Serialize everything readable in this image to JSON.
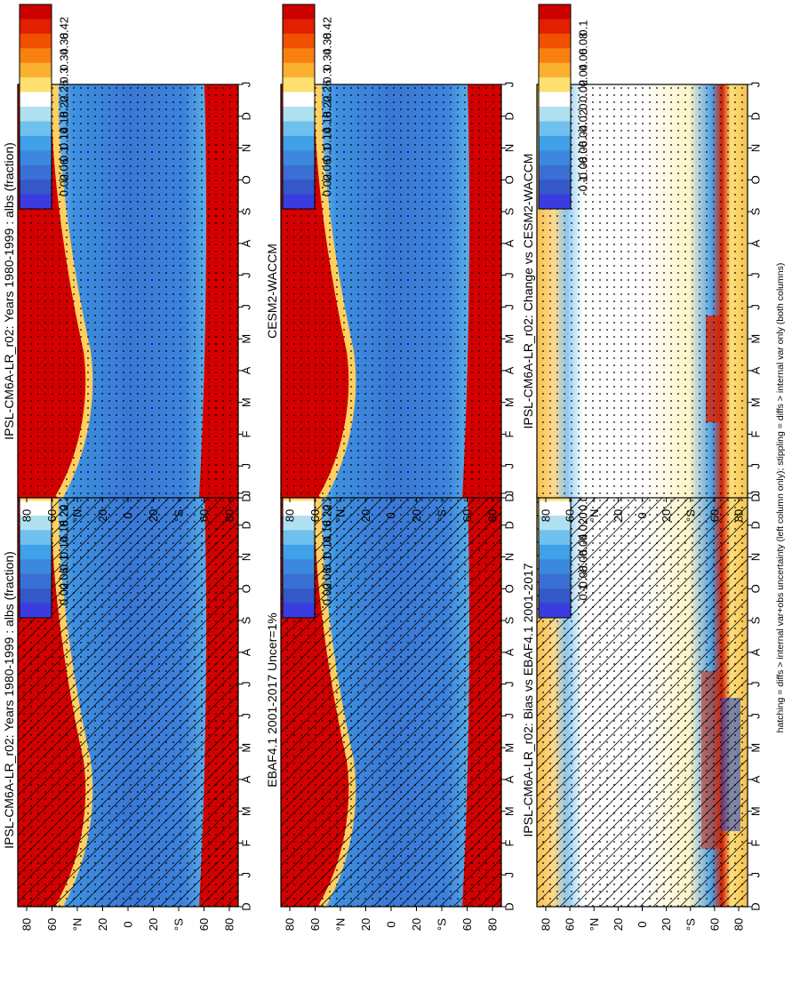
{
  "figure": {
    "caption": "hatching = diffs > internal var+obs uncertainty (left column only); stippling = diffs > internal var only (both columns)"
  },
  "chart_data": [
    {
      "type": "heatmap",
      "id": "ipsl_model",
      "title": "IPSL-CM6A-LR_r02: Years 1980-1999 : albs (fraction)",
      "x_ticks": [
        "D",
        "J",
        "F",
        "M",
        "A",
        "M",
        "J",
        "J",
        "A",
        "S",
        "O",
        "N",
        "D",
        "J"
      ],
      "y_ticks": [
        "80",
        "60",
        "°N",
        "20",
        "0",
        "20",
        "°S",
        "60",
        "80"
      ],
      "colorbar": [
        "0.42",
        "0.38",
        "0.34",
        "0.3",
        "0.26",
        "0.22",
        "0.18",
        "0.14",
        "0.1",
        "0.06",
        "0.02"
      ],
      "field": "albedo",
      "overlay": [
        "hatch",
        "stipple"
      ]
    },
    {
      "type": "heatmap",
      "id": "ebaf_obs",
      "title": "EBAF4.1 2001-2017 Uncer=1%",
      "x_ticks": [
        "D",
        "J",
        "F",
        "M",
        "A",
        "M",
        "J",
        "J",
        "A",
        "S",
        "O",
        "N",
        "D",
        "J"
      ],
      "y_ticks": [
        "80",
        "60",
        "°N",
        "20",
        "0",
        "20",
        "°S",
        "60",
        "80"
      ],
      "colorbar": [
        "0.42",
        "0.38",
        "0.34",
        "0.3",
        "0.26",
        "0.22",
        "0.18",
        "0.14",
        "0.1",
        "0.06",
        "0.02"
      ],
      "field": "albedo",
      "overlay": [
        "hatch",
        "stipple"
      ]
    },
    {
      "type": "heatmap",
      "id": "ipsl_bias",
      "title": "IPSL-CM6A-LR_r02: Bias vs EBAF4.1 2001-2017",
      "x_ticks": [
        "D",
        "J",
        "F",
        "M",
        "A",
        "M",
        "J",
        "J",
        "A",
        "S",
        "O",
        "N",
        "D",
        "J"
      ],
      "y_ticks": [
        "80",
        "60",
        "°N",
        "20",
        "0",
        "20",
        "°S",
        "60",
        "80"
      ],
      "colorbar": [
        "0.1",
        "0.08",
        "0.06",
        "0.04",
        "0.02",
        "0",
        "-0.02",
        "-0.04",
        "-0.06",
        "-0.08",
        "-0.1"
      ],
      "field": "bias",
      "overlay": [
        "hatch",
        "stipple"
      ]
    },
    {
      "type": "heatmap",
      "id": "ipsl_model_2",
      "title": "IPSL-CM6A-LR_r02: Years 1980-1999 : albs (fraction)",
      "x_ticks": [
        "D",
        "J",
        "F",
        "M",
        "A",
        "M",
        "J",
        "J",
        "A",
        "S",
        "O",
        "N",
        "D",
        "J"
      ],
      "y_ticks": [
        "80",
        "60",
        "°N",
        "20",
        "0",
        "20",
        "°S",
        "60",
        "80"
      ],
      "colorbar": [
        "0.42",
        "0.38",
        "0.34",
        "0.3",
        "0.26",
        "0.22",
        "0.18",
        "0.14",
        "0.1",
        "0.06",
        "0.02"
      ],
      "field": "albedo",
      "overlay": [
        "stipple"
      ]
    },
    {
      "type": "heatmap",
      "id": "cesm",
      "title": "CESM2-WACCM",
      "x_ticks": [
        "D",
        "J",
        "F",
        "M",
        "A",
        "M",
        "J",
        "J",
        "A",
        "S",
        "O",
        "N",
        "D",
        "J"
      ],
      "y_ticks": [
        "80",
        "60",
        "°N",
        "20",
        "0",
        "20",
        "°S",
        "60",
        "80"
      ],
      "colorbar": [
        "0.42",
        "0.38",
        "0.34",
        "0.3",
        "0.26",
        "0.22",
        "0.18",
        "0.14",
        "0.1",
        "0.06",
        "0.02"
      ],
      "field": "albedo",
      "overlay": [
        "stipple"
      ]
    },
    {
      "type": "heatmap",
      "id": "ipsl_change",
      "title": "IPSL-CM6A-LR_r02: Change vs CESM2-WACCM",
      "x_ticks": [
        "D",
        "J",
        "F",
        "M",
        "A",
        "M",
        "J",
        "J",
        "A",
        "S",
        "O",
        "N",
        "D",
        "J"
      ],
      "y_ticks": [
        "80",
        "60",
        "°N",
        "20",
        "0",
        "20",
        "°S",
        "60",
        "80"
      ],
      "colorbar": [
        "0.1",
        "0.08",
        "0.06",
        "0.04",
        "0.02",
        "0",
        "-0.02",
        "-0.04",
        "-0.06",
        "-0.08",
        "-0.1"
      ],
      "field": "change",
      "overlay": [
        "stipple"
      ]
    }
  ],
  "colors": {
    "albedo_scale": [
      "#cc0000",
      "#e02000",
      "#f05000",
      "#f88010",
      "#fcb030",
      "#fde070",
      "#ffffff",
      "#b0e0f0",
      "#70c0ee",
      "#40a0e8",
      "#3b88de",
      "#3a70d4",
      "#3458c8",
      "#3a3ce0"
    ],
    "diff_scale": [
      "#cc0000",
      "#e02000",
      "#f05000",
      "#f88010",
      "#fcb030",
      "#fde070",
      "#ffffff",
      "#b0e0f0",
      "#70c0ee",
      "#40a0e8",
      "#3b88de",
      "#3a70d4",
      "#3458c8",
      "#3a3ce0"
    ]
  }
}
